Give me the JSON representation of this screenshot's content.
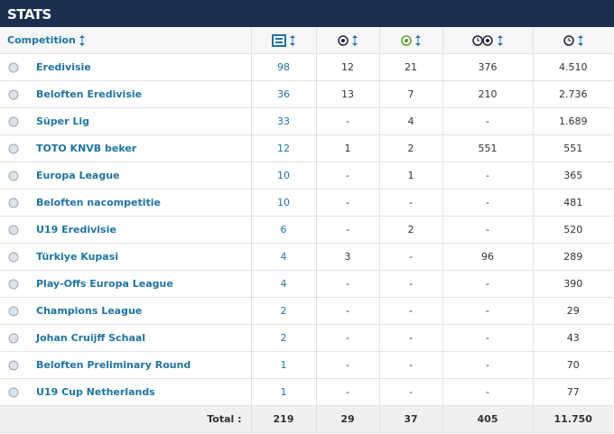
{
  "header": {
    "title": "STATS"
  },
  "table": {
    "columns": [
      "Competition"
    ],
    "rows": [
      [
        "Eredivisie",
        "98",
        "12",
        "21",
        "376",
        "4.510"
      ],
      [
        "Beloften Eredivisie",
        "36",
        "13",
        "7",
        "210",
        "2.736"
      ],
      [
        "Süper Lig",
        "33",
        "-",
        "4",
        "-",
        "1.689"
      ],
      [
        "TOTO KNVB beker",
        "12",
        "1",
        "2",
        "551",
        "551"
      ],
      [
        "Europa League",
        "10",
        "-",
        "1",
        "-",
        "365"
      ],
      [
        "Beloften nacompetitie",
        "10",
        "-",
        "-",
        "-",
        "481"
      ],
      [
        "U19 Eredivisie",
        "6",
        "-",
        "2",
        "-",
        "520"
      ],
      [
        "Türkiye Kupasi",
        "4",
        "3",
        "-",
        "96",
        "289"
      ],
      [
        "Play-Offs Europa League",
        "4",
        "-",
        "-",
        "-",
        "390"
      ],
      [
        "Champions League",
        "2",
        "-",
        "-",
        "-",
        "29"
      ],
      [
        "Johan Cruijff Schaal",
        "2",
        "-",
        "-",
        "-",
        "43"
      ],
      [
        "Beloften Preliminary Round",
        "1",
        "-",
        "-",
        "-",
        "70"
      ],
      [
        "U19 Cup Netherlands",
        "1",
        "-",
        "-",
        "-",
        "77"
      ]
    ],
    "total": {
      "label": "Total :",
      "values": [
        "219",
        "29",
        "37",
        "405",
        "11.750"
      ]
    }
  }
}
